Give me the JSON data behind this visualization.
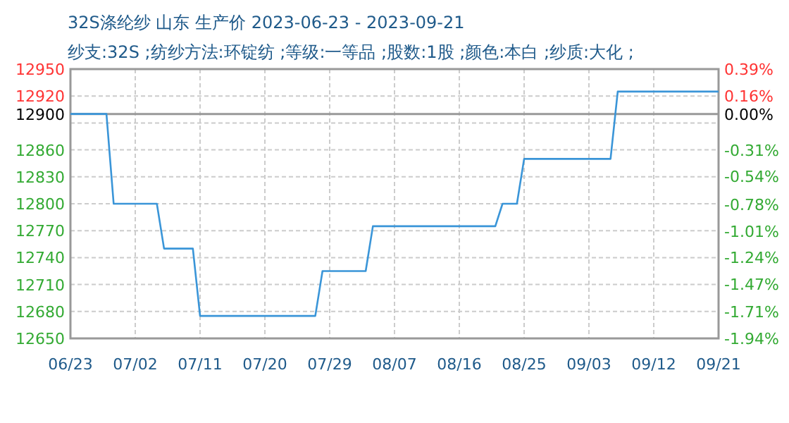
{
  "chart_data": {
    "type": "line",
    "title": "32S涤纶纱 山东 生产价 2023-06-23 - 2023-09-21",
    "subtitle": "纱支:32S ;纺纱方法:环锭纺 ;等级:一等品 ;股数:1股 ;颜色:本白 ;纱质:大化 ;",
    "x": [
      "2023-06-23",
      "2023-06-28",
      "2023-06-29",
      "2023-07-05",
      "2023-07-06",
      "2023-07-10",
      "2023-07-11",
      "2023-07-27",
      "2023-07-28",
      "2023-08-03",
      "2023-08-04",
      "2023-08-21",
      "2023-08-22",
      "2023-08-24",
      "2023-08-25",
      "2023-09-06",
      "2023-09-07",
      "2023-09-21"
    ],
    "series": [
      {
        "color": "#3a95d8",
        "values": [
          12900,
          12900,
          12800,
          12800,
          12750,
          12750,
          12675,
          12675,
          12725,
          12725,
          12775,
          12775,
          12800,
          12800,
          12850,
          12850,
          12925,
          12925
        ]
      }
    ],
    "xlim": [
      "2023-06-23",
      "2023-09-21"
    ],
    "xticks": [
      {
        "value": "2023-06-23",
        "label": "06/23"
      },
      {
        "value": "2023-07-02",
        "label": "07/02"
      },
      {
        "value": "2023-07-11",
        "label": "07/11"
      },
      {
        "value": "2023-07-20",
        "label": "07/20"
      },
      {
        "value": "2023-07-29",
        "label": "07/29"
      },
      {
        "value": "2023-08-07",
        "label": "08/07"
      },
      {
        "value": "2023-08-16",
        "label": "08/16"
      },
      {
        "value": "2023-08-25",
        "label": "08/25"
      },
      {
        "value": "2023-09-03",
        "label": "09/03"
      },
      {
        "value": "2023-09-12",
        "label": "09/12"
      },
      {
        "value": "2023-09-21",
        "label": "09/21"
      }
    ],
    "ylim": [
      12650,
      12950
    ],
    "yticks": [
      12650,
      12680,
      12710,
      12740,
      12770,
      12800,
      12830,
      12860,
      {
        "value": 12890,
        "label": null
      },
      12920,
      12950
    ],
    "y2lim": [
      -1.94,
      0.39
    ],
    "y2ticks": [
      {
        "value": 0.39,
        "label": "0.39%"
      },
      {
        "value": 0.16,
        "label": "0.16%"
      },
      {
        "value": 0,
        "label": "0.00%"
      },
      {
        "value": -0.31,
        "label": "-0.31%"
      },
      {
        "value": -0.54,
        "label": "-0.54%"
      },
      {
        "value": -0.78,
        "label": "-0.78%"
      },
      {
        "value": -1.01,
        "label": "-1.01%"
      },
      {
        "value": -1.24,
        "label": "-1.24%"
      },
      {
        "value": -1.47,
        "label": "-1.47%"
      },
      {
        "value": -1.71,
        "label": "-1.71%"
      },
      {
        "value": -1.94,
        "label": "-1.94%"
      }
    ],
    "ref_lines": [
      {
        "axis": "y",
        "value": 12900,
        "label": "12900",
        "color": "#999999"
      }
    ],
    "grid": true,
    "line_style": "solid"
  }
}
